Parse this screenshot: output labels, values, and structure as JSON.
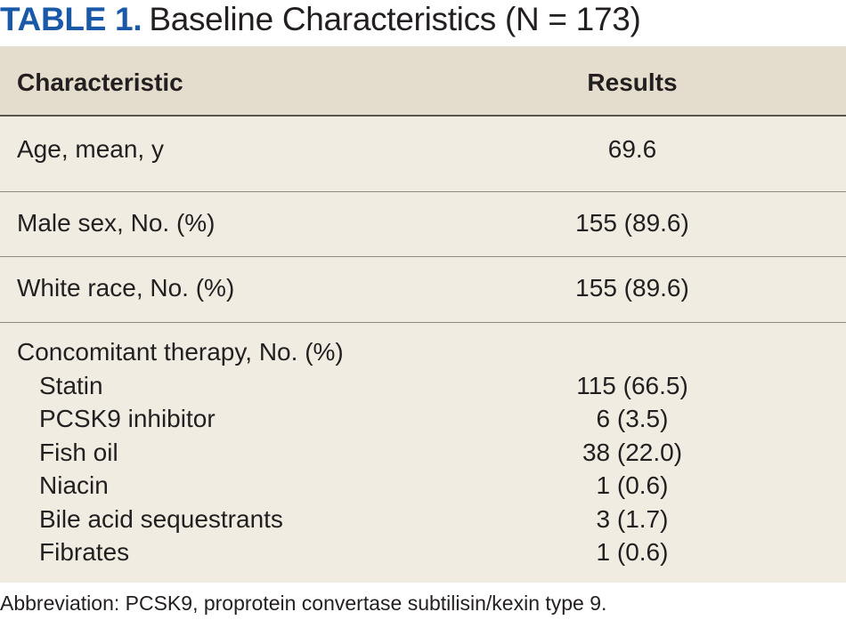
{
  "title": {
    "label": "TABLE 1.",
    "text": "Baseline Characteristics (N = 173)"
  },
  "table": {
    "headers": [
      "Characteristic",
      "Results"
    ],
    "rows": [
      {
        "characteristic": "Age, mean, y",
        "result": "69.6"
      },
      {
        "characteristic": "Male sex, No. (%)",
        "result": "155 (89.6)"
      },
      {
        "characteristic": "White race, No. (%)",
        "result": "155 (89.6)"
      }
    ],
    "group": {
      "characteristic": "Concomitant therapy, No. (%)",
      "items": [
        {
          "characteristic": "Statin",
          "result": "115 (66.5)"
        },
        {
          "characteristic": "PCSK9 inhibitor",
          "result": "6 (3.5)"
        },
        {
          "characteristic": "Fish oil",
          "result": "38 (22.0)"
        },
        {
          "characteristic": "Niacin",
          "result": "1 (0.6)"
        },
        {
          "characteristic": "Bile acid sequestrants",
          "result": "3 (1.7)"
        },
        {
          "characteristic": "Fibrates",
          "result": "1 (0.6)"
        }
      ]
    }
  },
  "footnote": "Abbreviation: PCSK9, proprotein convertase subtilisin/kexin type 9."
}
